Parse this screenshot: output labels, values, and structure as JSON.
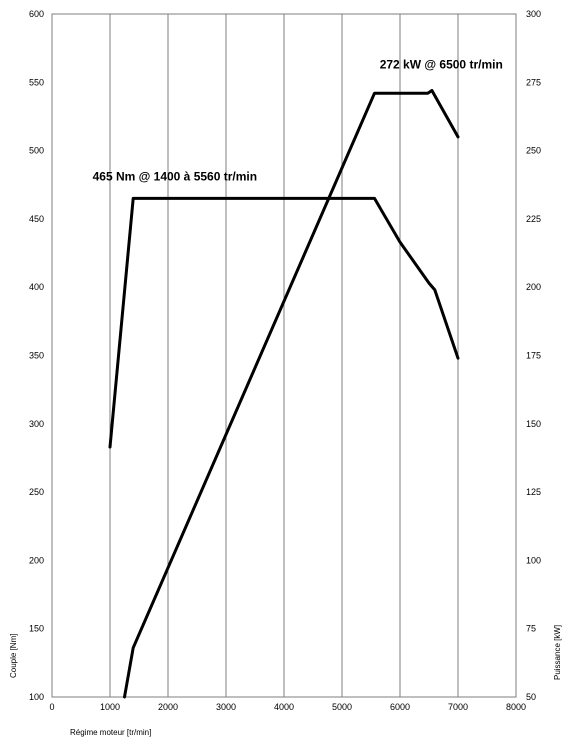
{
  "chart_data": {
    "type": "line",
    "title": "",
    "xlabel": "Régime moteur [tr/min]",
    "ylabel_left": "Couple [Nm]",
    "ylabel_right": "Puissance [kW]",
    "xlim": [
      0,
      8000
    ],
    "ylim_left": [
      100,
      600
    ],
    "ylim_right": [
      50,
      300
    ],
    "x_ticks": [
      "0",
      "1000",
      "2000",
      "3000",
      "4000",
      "5000",
      "6000",
      "7000",
      "8000"
    ],
    "y_left_ticks": [
      "100",
      "150",
      "200",
      "250",
      "300",
      "350",
      "400",
      "450",
      "500",
      "550",
      "600"
    ],
    "y_right_ticks": [
      "50",
      "75",
      "100",
      "125",
      "150",
      "175",
      "200",
      "225",
      "250",
      "275",
      "300"
    ],
    "grid": "vertical",
    "series": [
      {
        "axis": "left",
        "x": [
          1000,
          1400,
          5560,
          6000,
          6500,
          6600,
          7000
        ],
        "y": [
          283,
          465,
          465,
          433,
          403,
          398,
          348
        ]
      },
      {
        "axis": "right",
        "x": [
          1250,
          1400,
          5560,
          6300,
          6480,
          6550,
          7000
        ],
        "y": [
          50,
          68,
          271,
          271,
          271,
          272,
          255
        ]
      }
    ],
    "annotations": [
      {
        "text": "465 Nm @ 1400 à 5560 tr/min",
        "x": 700,
        "y": 478,
        "axis": "left"
      },
      {
        "text": "272 kW @ 6500 tr/min",
        "x": 5650,
        "y": 280,
        "axis": "right"
      }
    ]
  }
}
